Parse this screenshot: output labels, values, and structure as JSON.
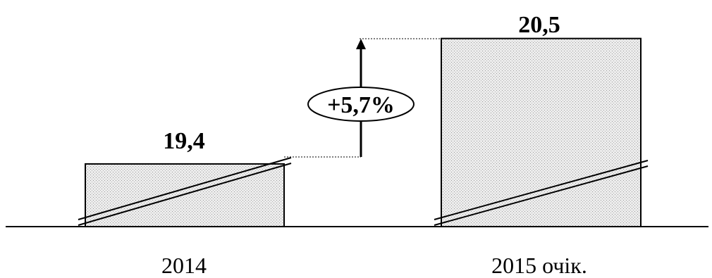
{
  "chart_data": {
    "type": "bar",
    "categories": [
      "2014",
      "2015 очік."
    ],
    "values": [
      19.4,
      20.5
    ],
    "value_labels": [
      "19,4",
      "20,5"
    ],
    "change_label": "+5,7%",
    "axis_break": true,
    "colors": {
      "bar_fill": "#e4e4e4",
      "bar_stroke": "#000000",
      "axis": "#000000"
    }
  }
}
